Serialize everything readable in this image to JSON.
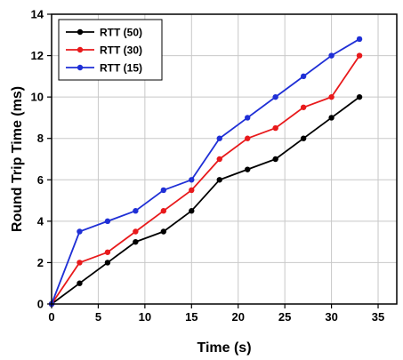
{
  "chart_data": {
    "type": "line",
    "title": "",
    "xlabel": "Time (s)",
    "ylabel": "Round Trip Time (ms)",
    "xlim": [
      0,
      37
    ],
    "ylim": [
      0,
      14
    ],
    "xticks": [
      0,
      5,
      10,
      15,
      20,
      25,
      30,
      35
    ],
    "yticks": [
      0,
      2,
      4,
      6,
      8,
      10,
      12,
      14
    ],
    "grid": true,
    "legend_position": "top-left",
    "x": [
      0,
      3,
      6,
      9,
      12,
      15,
      18,
      21,
      24,
      27,
      30,
      33
    ],
    "series": [
      {
        "name": "RTT (50)",
        "color": "#000000",
        "values": [
          0,
          1,
          2,
          3,
          3.5,
          4.5,
          6,
          6.5,
          7,
          8,
          9,
          10
        ]
      },
      {
        "name": "RTT (30)",
        "color": "#e8191b",
        "values": [
          0,
          2,
          2.5,
          3.5,
          4.5,
          5.5,
          7,
          8,
          8.5,
          9.5,
          10,
          12
        ]
      },
      {
        "name": "RTT (15)",
        "color": "#1f2fd6",
        "values": [
          0,
          3.5,
          4,
          4.5,
          5.5,
          6,
          8,
          9,
          10,
          11,
          12,
          12.8
        ]
      }
    ]
  }
}
